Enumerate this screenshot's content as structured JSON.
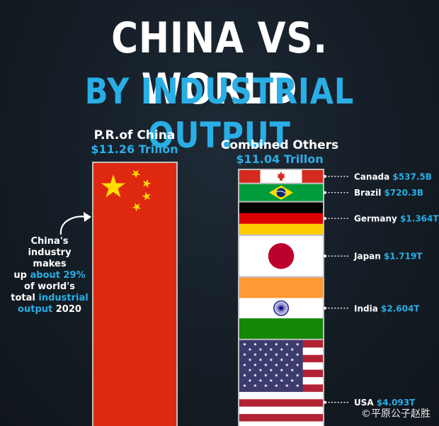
{
  "title": "CHINA VS. WORLD",
  "subtitle": "BY INDUSTRIAL OUTPUT",
  "china": {
    "name": "P.R.of China",
    "value_label": "$11.26 Trillon",
    "value": 11.26
  },
  "others": {
    "name": "Combined Others",
    "value_label": "$11.04 Trillon",
    "value": 11.04
  },
  "note": {
    "line1": "China's",
    "line2": "industry makes",
    "line3a": "up ",
    "line3b": "about 29%",
    "line4": "of world's",
    "line5a": "total ",
    "line5b": "industrial",
    "line6a": "output",
    "line6b": " 2020"
  },
  "watermark": "©平原公子赵胜",
  "colors": {
    "accent": "#29aee6",
    "china_red": "#de2910",
    "china_star": "#ffde00"
  },
  "chart_data": {
    "type": "bar",
    "title": "CHINA VS. WORLD",
    "subtitle": "BY INDUSTRIAL OUTPUT",
    "unit": "Trillion USD",
    "categories": [
      "P.R.of China",
      "Combined Others"
    ],
    "values": [
      11.26,
      11.04
    ],
    "stack": [
      {
        "country": "Canada",
        "label": "$537.5B",
        "value": 0.5375,
        "flag": "canada-flag"
      },
      {
        "country": "Brazil",
        "label": "$720.3B",
        "value": 0.7203,
        "flag": "brazil-flag"
      },
      {
        "country": "Germany",
        "label": "$1.364T",
        "value": 1.364,
        "flag": "germany-flag"
      },
      {
        "country": "Japan",
        "label": "$1.719T",
        "value": 1.719,
        "flag": "japan-flag"
      },
      {
        "country": "India",
        "label": "$2.604T",
        "value": 2.604,
        "flag": "india-flag"
      },
      {
        "country": "USA",
        "label": "$4.093T",
        "value": 4.093,
        "flag": "usa-flag"
      }
    ]
  }
}
